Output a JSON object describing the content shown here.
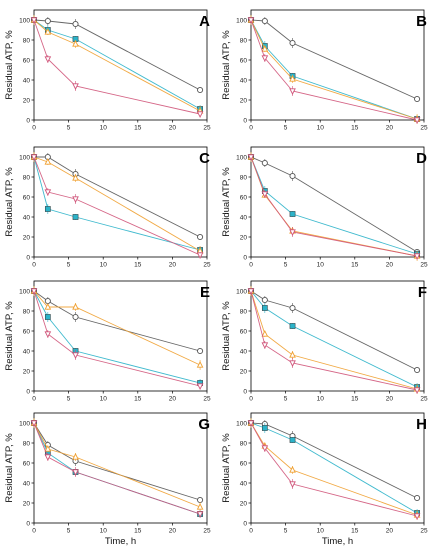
{
  "colors": {
    "control": "#555555",
    "cyan": "#2bb3c9",
    "orange": "#f0a030",
    "pink": "#d0557a",
    "axis": "#000000"
  },
  "chart_data": [
    {
      "panel": "A",
      "type": "line",
      "xlabel": "",
      "ylabel": "Residual ATP, %",
      "xlim": [
        0,
        25
      ],
      "ylim": [
        0,
        110
      ],
      "x_ticks": [
        0,
        5,
        10,
        15,
        20,
        25
      ],
      "y_ticks": [
        0,
        20,
        40,
        60,
        80,
        100
      ],
      "series": [
        {
          "color": "control",
          "marker": "circle",
          "x": [
            0,
            2,
            6,
            24
          ],
          "y": [
            100,
            99,
            96,
            30
          ]
        },
        {
          "color": "cyan",
          "marker": "square",
          "x": [
            0,
            2,
            6,
            24
          ],
          "y": [
            100,
            90,
            81,
            11
          ]
        },
        {
          "color": "orange",
          "marker": "triangle-up",
          "x": [
            0,
            2,
            6,
            24
          ],
          "y": [
            100,
            88,
            76,
            9
          ]
        },
        {
          "color": "pink",
          "marker": "triangle-down",
          "x": [
            0,
            2,
            6,
            24
          ],
          "y": [
            100,
            61,
            34,
            6
          ]
        }
      ]
    },
    {
      "panel": "B",
      "type": "line",
      "xlabel": "",
      "ylabel": "Residual ATP, %",
      "xlim": [
        0,
        25
      ],
      "ylim": [
        0,
        110
      ],
      "x_ticks": [
        0,
        5,
        10,
        15,
        20,
        25
      ],
      "y_ticks": [
        0,
        20,
        40,
        60,
        80,
        100
      ],
      "series": [
        {
          "color": "control",
          "marker": "circle",
          "x": [
            0,
            2,
            6,
            24
          ],
          "y": [
            100,
            99,
            77,
            21
          ]
        },
        {
          "color": "cyan",
          "marker": "square",
          "x": [
            0,
            2,
            6,
            24
          ],
          "y": [
            100,
            74,
            44,
            1
          ]
        },
        {
          "color": "orange",
          "marker": "triangle-up",
          "x": [
            0,
            2,
            6,
            24
          ],
          "y": [
            100,
            71,
            41,
            1
          ]
        },
        {
          "color": "pink",
          "marker": "triangle-down",
          "x": [
            0,
            2,
            6,
            24
          ],
          "y": [
            100,
            62,
            29,
            0
          ]
        }
      ]
    },
    {
      "panel": "C",
      "type": "line",
      "xlabel": "",
      "ylabel": "Residual ATP, %",
      "xlim": [
        0,
        25
      ],
      "ylim": [
        0,
        110
      ],
      "x_ticks": [
        0,
        5,
        10,
        15,
        20,
        25
      ],
      "y_ticks": [
        0,
        20,
        40,
        60,
        80,
        100
      ],
      "series": [
        {
          "color": "control",
          "marker": "circle",
          "x": [
            0,
            2,
            6,
            24
          ],
          "y": [
            100,
            100,
            83,
            20
          ]
        },
        {
          "color": "cyan",
          "marker": "square",
          "x": [
            0,
            2,
            6,
            24
          ],
          "y": [
            100,
            48,
            40,
            7
          ]
        },
        {
          "color": "orange",
          "marker": "triangle-up",
          "x": [
            0,
            2,
            6,
            24
          ],
          "y": [
            100,
            95,
            79,
            6
          ]
        },
        {
          "color": "pink",
          "marker": "triangle-down",
          "x": [
            0,
            2,
            6,
            24
          ],
          "y": [
            100,
            65,
            58,
            2
          ]
        }
      ]
    },
    {
      "panel": "D",
      "type": "line",
      "xlabel": "",
      "ylabel": "Residual ATP, %",
      "xlim": [
        0,
        25
      ],
      "ylim": [
        0,
        110
      ],
      "x_ticks": [
        0,
        5,
        10,
        15,
        20,
        25
      ],
      "y_ticks": [
        0,
        20,
        40,
        60,
        80,
        100
      ],
      "series": [
        {
          "color": "control",
          "marker": "circle",
          "x": [
            0,
            2,
            6,
            24
          ],
          "y": [
            100,
            94,
            81,
            5
          ]
        },
        {
          "color": "cyan",
          "marker": "square",
          "x": [
            0,
            2,
            6,
            24
          ],
          "y": [
            100,
            66,
            43,
            3
          ]
        },
        {
          "color": "orange",
          "marker": "triangle-up",
          "x": [
            0,
            2,
            6,
            24
          ],
          "y": [
            100,
            62,
            26,
            1
          ]
        },
        {
          "color": "pink",
          "marker": "triangle-down",
          "x": [
            0,
            2,
            6,
            24
          ],
          "y": [
            100,
            63,
            25,
            1
          ]
        }
      ]
    },
    {
      "panel": "E",
      "type": "line",
      "xlabel": "",
      "ylabel": "Residual ATP, %",
      "xlim": [
        0,
        25
      ],
      "ylim": [
        0,
        110
      ],
      "x_ticks": [
        0,
        5,
        10,
        15,
        20,
        25
      ],
      "y_ticks": [
        0,
        20,
        40,
        60,
        80,
        100
      ],
      "series": [
        {
          "color": "control",
          "marker": "circle",
          "x": [
            0,
            2,
            6,
            24
          ],
          "y": [
            100,
            90,
            74,
            40
          ]
        },
        {
          "color": "cyan",
          "marker": "square",
          "x": [
            0,
            2,
            6,
            24
          ],
          "y": [
            100,
            74,
            40,
            8
          ]
        },
        {
          "color": "orange",
          "marker": "triangle-up",
          "x": [
            0,
            2,
            6,
            24
          ],
          "y": [
            100,
            84,
            84,
            26
          ]
        },
        {
          "color": "pink",
          "marker": "triangle-down",
          "x": [
            0,
            2,
            6,
            24
          ],
          "y": [
            100,
            57,
            36,
            5
          ]
        }
      ]
    },
    {
      "panel": "F",
      "type": "line",
      "xlabel": "",
      "ylabel": "Residual ATP, %",
      "xlim": [
        0,
        25
      ],
      "ylim": [
        0,
        110
      ],
      "x_ticks": [
        0,
        5,
        10,
        15,
        20,
        25
      ],
      "y_ticks": [
        0,
        20,
        40,
        60,
        80,
        100
      ],
      "series": [
        {
          "color": "control",
          "marker": "circle",
          "x": [
            0,
            2,
            6,
            24
          ],
          "y": [
            100,
            91,
            83,
            21
          ]
        },
        {
          "color": "cyan",
          "marker": "square",
          "x": [
            0,
            2,
            6,
            24
          ],
          "y": [
            100,
            83,
            65,
            4
          ]
        },
        {
          "color": "orange",
          "marker": "triangle-up",
          "x": [
            0,
            2,
            6,
            24
          ],
          "y": [
            100,
            57,
            36,
            2
          ]
        },
        {
          "color": "pink",
          "marker": "triangle-down",
          "x": [
            0,
            2,
            6,
            24
          ],
          "y": [
            100,
            46,
            28,
            1
          ]
        }
      ]
    },
    {
      "panel": "G",
      "type": "line",
      "xlabel": "Time, h",
      "ylabel": "Residual ATP, %",
      "xlim": [
        0,
        25
      ],
      "ylim": [
        0,
        110
      ],
      "x_ticks": [
        0,
        5,
        10,
        15,
        20,
        25
      ],
      "y_ticks": [
        0,
        20,
        40,
        60,
        80,
        100
      ],
      "series": [
        {
          "color": "control",
          "marker": "circle",
          "x": [
            0,
            2,
            6,
            24
          ],
          "y": [
            100,
            78,
            62,
            23
          ]
        },
        {
          "color": "cyan",
          "marker": "square",
          "x": [
            0,
            2,
            6,
            24
          ],
          "y": [
            100,
            70,
            51,
            9
          ]
        },
        {
          "color": "orange",
          "marker": "triangle-up",
          "x": [
            0,
            2,
            6,
            24
          ],
          "y": [
            100,
            74,
            66,
            16
          ]
        },
        {
          "color": "pink",
          "marker": "triangle-down",
          "x": [
            0,
            2,
            6,
            24
          ],
          "y": [
            100,
            66,
            51,
            9
          ]
        }
      ]
    },
    {
      "panel": "H",
      "type": "line",
      "xlabel": "Time, h",
      "ylabel": "Residual ATP, %",
      "xlim": [
        0,
        25
      ],
      "ylim": [
        0,
        110
      ],
      "x_ticks": [
        0,
        5,
        10,
        15,
        20,
        25
      ],
      "y_ticks": [
        0,
        20,
        40,
        60,
        80,
        100
      ],
      "series": [
        {
          "color": "control",
          "marker": "circle",
          "x": [
            0,
            2,
            6,
            24
          ],
          "y": [
            100,
            99,
            87,
            25
          ]
        },
        {
          "color": "cyan",
          "marker": "square",
          "x": [
            0,
            2,
            6,
            24
          ],
          "y": [
            100,
            95,
            83,
            10
          ]
        },
        {
          "color": "orange",
          "marker": "triangle-up",
          "x": [
            0,
            2,
            6,
            24
          ],
          "y": [
            100,
            77,
            53,
            8
          ]
        },
        {
          "color": "pink",
          "marker": "triangle-down",
          "x": [
            0,
            2,
            6,
            24
          ],
          "y": [
            100,
            75,
            39,
            7
          ]
        }
      ]
    }
  ]
}
